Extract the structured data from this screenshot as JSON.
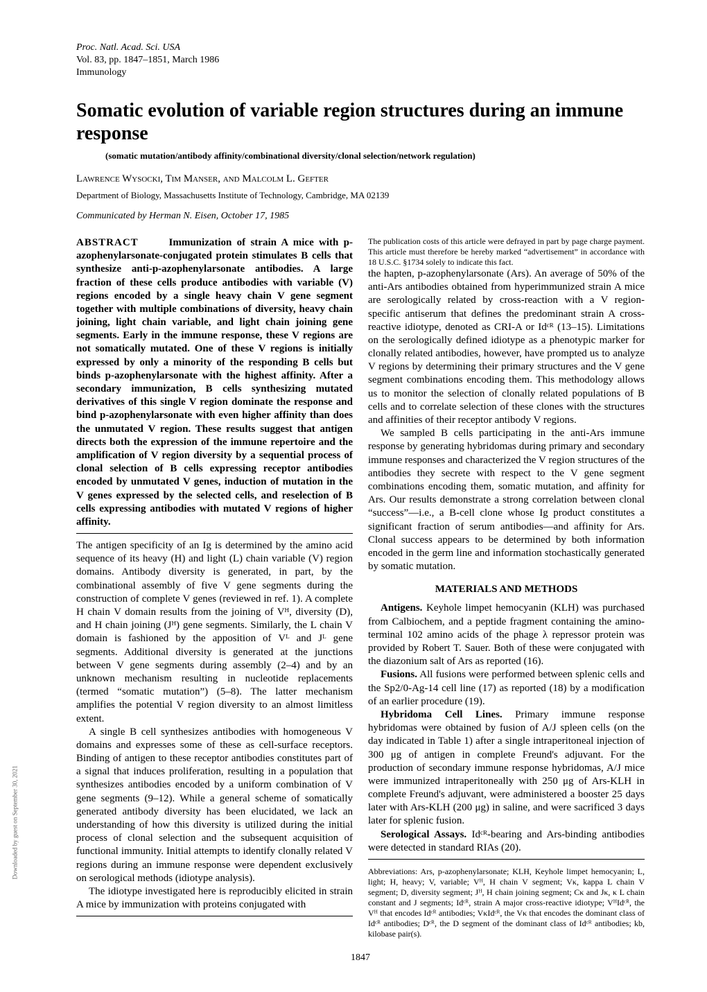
{
  "meta": {
    "journal_line1": "Proc. Natl. Acad. Sci. USA",
    "journal_line2": "Vol. 83, pp. 1847–1851, March 1986",
    "journal_line3": "Immunology"
  },
  "title": "Somatic evolution of variable region structures during an immune response",
  "keywords": "(somatic mutation/antibody affinity/combinational diversity/clonal selection/network regulation)",
  "authors": "Lawrence Wysocki, Tim Manser, and Malcolm L. Gefter",
  "affiliation": "Department of Biology, Massachusetts Institute of Technology, Cambridge, MA 02139",
  "communicated": "Communicated by Herman N. Eisen, October 17, 1985",
  "abstract": {
    "label": "ABSTRACT",
    "text": "Immunization of strain A mice with p-azophenylarsonate-conjugated protein stimulates B cells that synthesize anti-p-azophenylarsonate antibodies. A large fraction of these cells produce antibodies with variable (V) regions encoded by a single heavy chain V gene segment together with multiple combinations of diversity, heavy chain joining, light chain variable, and light chain joining gene segments. Early in the immune response, these V regions are not somatically mutated. One of these V regions is initially expressed by only a minority of the responding B cells but binds p-azophenylarsonate with the highest affinity. After a secondary immunization, B cells synthesizing mutated derivatives of this single V region dominate the response and bind p-azophenylarsonate with even higher affinity than does the unmutated V region. These results suggest that antigen directs both the expression of the immune repertoire and the amplification of V region diversity by a sequential process of clonal selection of B cells expressing receptor antibodies encoded by unmutated V genes, induction of mutation in the V genes expressed by the selected cells, and reselection of B cells expressing antibodies with mutated V regions of higher affinity."
  },
  "body": {
    "p1": "The antigen specificity of an Ig is determined by the amino acid sequence of its heavy (H) and light (L) chain variable (V) region domains. Antibody diversity is generated, in part, by the combinational assembly of five V gene segments during the construction of complete V genes (reviewed in ref. 1). A complete H chain V domain results from the joining of Vᴴ, diversity (D), and H chain joining (Jᴴ) gene segments. Similarly, the L chain V domain is fashioned by the apposition of Vᴸ and Jᴸ gene segments. Additional diversity is generated at the junctions between V gene segments during assembly (2–4) and by an unknown mechanism resulting in nucleotide replacements (termed “somatic mutation”) (5–8). The latter mechanism amplifies the potential V region diversity to an almost limitless extent.",
    "p2": "A single B cell synthesizes antibodies with homogeneous V domains and expresses some of these as cell-surface receptors. Binding of antigen to these receptor antibodies constitutes part of a signal that induces proliferation, resulting in a population that synthesizes antibodies encoded by a uniform combination of V gene segments (9–12). While a general scheme of somatically generated antibody diversity has been elucidated, we lack an understanding of how this diversity is utilized during the initial process of clonal selection and the subsequent acquisition of functional immunity. Initial attempts to identify clonally related V regions during an immune response were dependent exclusively on serological methods (idiotype analysis).",
    "p3": "The idiotype investigated here is reproducibly elicited in strain A mice by immunization with proteins conjugated with",
    "p4": "the hapten, p-azophenylarsonate (Ars). An average of 50% of the anti-Ars antibodies obtained from hyperimmunized strain A mice are serologically related by cross-reaction with a V region-specific antiserum that defines the predominant strain A cross-reactive idiotype, denoted as CRI-A or Idᶜᴿ (13–15). Limitations on the serologically defined idiotype as a phenotypic marker for clonally related antibodies, however, have prompted us to analyze V regions by determining their primary structures and the V gene segment combinations encoding them. This methodology allows us to monitor the selection of clonally related populations of B cells and to correlate selection of these clones with the structures and affinities of their receptor antibody V regions.",
    "p5": "We sampled B cells participating in the anti-Ars immune response by generating hybridomas during primary and secondary immune responses and characterized the V region structures of the antibodies they secrete with respect to the V gene segment combinations encoding them, somatic mutation, and affinity for Ars. Our results demonstrate a strong correlation between clonal “success”—i.e., a B-cell clone whose Ig product constitutes a significant fraction of serum antibodies—and affinity for Ars. Clonal success appears to be determined by both information encoded in the germ line and information stochastically generated by somatic mutation."
  },
  "methods": {
    "heading": "MATERIALS AND METHODS",
    "antigens_label": "Antigens.",
    "antigens": " Keyhole limpet hemocyanin (KLH) was purchased from Calbiochem, and a peptide fragment containing the amino-terminal 102 amino acids of the phage λ repressor protein was provided by Robert T. Sauer. Both of these were conjugated with the diazonium salt of Ars as reported (16).",
    "fusions_label": "Fusions.",
    "fusions": " All fusions were performed between splenic cells and the Sp2/0-Ag-14 cell line (17) as reported (18) by a modification of an earlier procedure (19).",
    "hybridoma_label": "Hybridoma Cell Lines.",
    "hybridoma": " Primary immune response hybridomas were obtained by fusion of A/J spleen cells (on the day indicated in Table 1) after a single intraperitoneal injection of 300 μg of antigen in complete Freund's adjuvant. For the production of secondary immune response hybridomas, A/J mice were immunized intraperitoneally with 250 μg of Ars-KLH in complete Freund's adjuvant, were administered a booster 25 days later with Ars-KLH (200 μg) in saline, and were sacrificed 3 days later for splenic fusion.",
    "sero_label": "Serological Assays.",
    "sero": " Idᶜᴿ-bearing and Ars-binding antibodies were detected in standard RIAs (20)."
  },
  "footnotes": {
    "pubcost": "The publication costs of this article were defrayed in part by page charge payment. This article must therefore be hereby marked “advertisement” in accordance with 18 U.S.C. §1734 solely to indicate this fact.",
    "abbrev": "Abbreviations: Ars, p-azophenylarsonate; KLH, Keyhole limpet hemocyanin; L, light; H, heavy; V, variable; Vᴴ, H chain V segment; Vκ, kappa L chain V segment; D, diversity segment; Jᴴ, H chain joining segment; Cκ and Jκ, κ L chain constant and J segments; Idᶜᴿ, strain A major cross-reactive idiotype; VᴴIdᶜᴿ, the Vᴴ that encodes Idᶜᴿ antibodies; VκIdᶜᴿ, the Vκ that encodes the dominant class of Idᶜᴿ antibodies; Dᶜᴿ, the D segment of the dominant class of Idᶜᴿ antibodies; kb, kilobase pair(s)."
  },
  "pagenum": "1847",
  "side": "Downloaded by guest on September 30, 2021"
}
